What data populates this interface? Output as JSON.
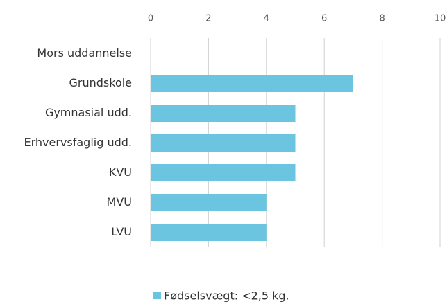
{
  "chart_data": {
    "type": "hbar",
    "categories": [
      "Mors uddannelse",
      "Grundskole",
      "Gymnasial udd.",
      "Erhvervsfaglig udd.",
      "KVU",
      "MVU",
      "LVU"
    ],
    "series": [
      {
        "name": "Fødselsvægt: <2,5 kg.",
        "color": "#6cc5e0",
        "values": [
          null,
          7,
          5,
          5,
          5,
          4,
          4
        ]
      }
    ],
    "xlim": [
      0,
      10
    ],
    "xticks": [
      0,
      2,
      4,
      6,
      8,
      10
    ],
    "grid": true,
    "legend": "bottom"
  }
}
